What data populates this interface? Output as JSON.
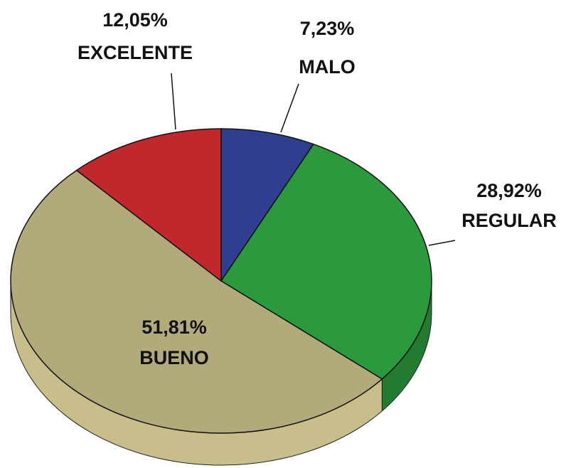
{
  "chart_data": {
    "type": "pie3d",
    "categories": [
      "MALO",
      "REGULAR",
      "BUENO",
      "EXCELENTE"
    ],
    "values": [
      7.23,
      28.92,
      51.81,
      12.05
    ],
    "value_labels": [
      "7,23%",
      "28,92%",
      "51,81%",
      "12,05%"
    ],
    "colors": [
      "#2e3f8f",
      "#2a9a3c",
      "#b3aa7c",
      "#c1272d"
    ]
  }
}
